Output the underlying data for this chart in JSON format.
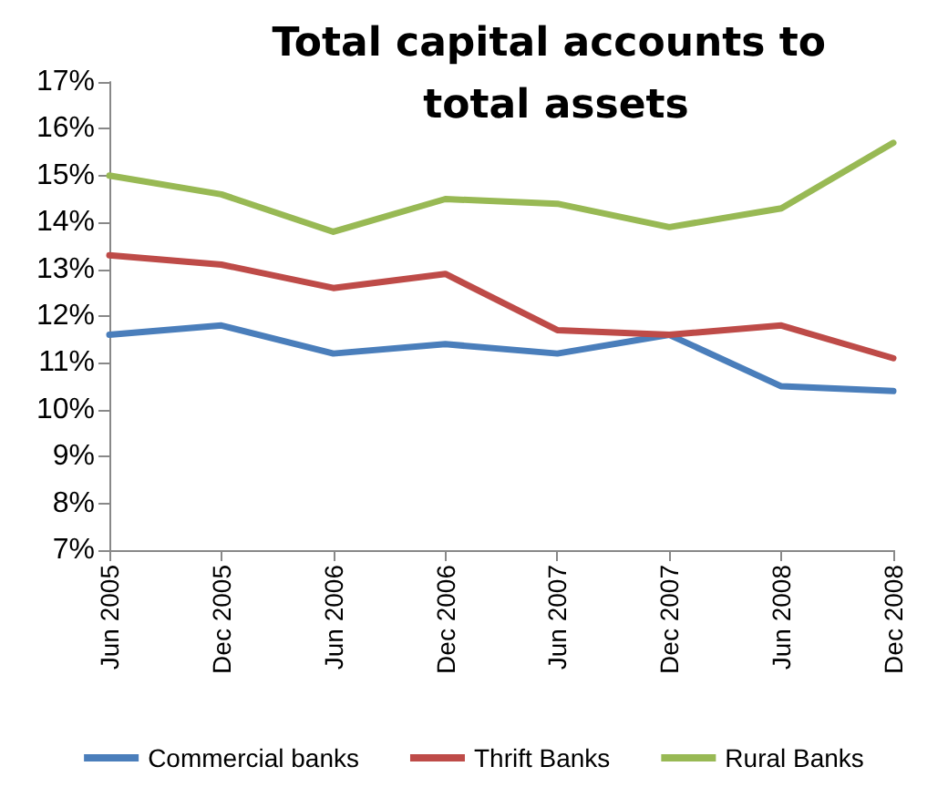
{
  "chart_data": {
    "type": "line",
    "title": "Total capital accounts to total assets",
    "categories": [
      "Jun 2005",
      "Dec 2005",
      "Jun 2006",
      "Dec 2006",
      "Jun 2007",
      "Dec 2007",
      "Jun 2008",
      "Dec 2008"
    ],
    "series": [
      {
        "name": "Commercial banks",
        "color": "#4a7ebb",
        "values": [
          11.6,
          11.8,
          11.2,
          11.4,
          11.2,
          11.6,
          10.5,
          10.4
        ]
      },
      {
        "name": "Thrift Banks",
        "color": "#be4b48",
        "values": [
          13.3,
          13.1,
          12.6,
          12.9,
          11.7,
          11.6,
          11.8,
          11.1
        ]
      },
      {
        "name": "Rural Banks",
        "color": "#98b954",
        "values": [
          15.0,
          14.6,
          13.8,
          14.5,
          14.4,
          13.9,
          14.3,
          15.7
        ]
      }
    ],
    "ylim": [
      7,
      17
    ],
    "yticks": [
      {
        "value": 7,
        "label": "7%"
      },
      {
        "value": 8,
        "label": "8%"
      },
      {
        "value": 9,
        "label": "9%"
      },
      {
        "value": 10,
        "label": "10%"
      },
      {
        "value": 11,
        "label": "11%"
      },
      {
        "value": 12,
        "label": "12%"
      },
      {
        "value": 13,
        "label": "13%"
      },
      {
        "value": 14,
        "label": "14%"
      },
      {
        "value": 15,
        "label": "15%"
      },
      {
        "value": 16,
        "label": "16%"
      },
      {
        "value": 17,
        "label": "17%"
      }
    ],
    "grid": false,
    "legend": "bottom",
    "marker": "none",
    "line_style": "solid"
  }
}
